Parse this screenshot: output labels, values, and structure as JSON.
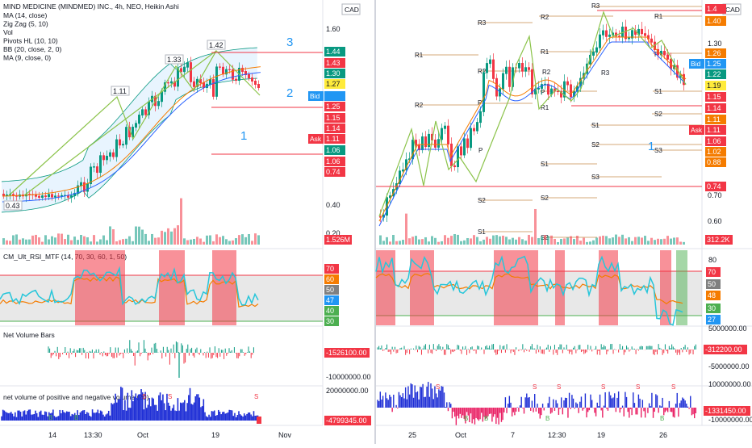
{
  "left": {
    "title": "MIND MEDICINE (MINDMED) INC., 4h, NEO, Heikin Ashi",
    "currency": "CAD",
    "legend": [
      "MA (14, close)",
      "Zig Zag (5, 10)",
      "Vol",
      "Pivots HL (10, 10)",
      "BB (20, close, 2, 0)",
      "MA (9, close, 0)"
    ],
    "x_ticks": [
      "14",
      "13:30",
      "Oct",
      "19",
      "Nov"
    ],
    "price_ticks": [
      "1.60",
      "0.40",
      "0.20"
    ],
    "price_badges": [
      {
        "text": "1.44",
        "color": "#089981"
      },
      {
        "text": "1.43",
        "color": "#f23645"
      },
      {
        "text": "1.30",
        "color": "#089981"
      },
      {
        "text": "1.27",
        "color": "#ffeb3b"
      },
      {
        "text": "1.25",
        "color": "#f23645"
      },
      {
        "text": "1.15",
        "color": "#f23645"
      },
      {
        "text": "1.14",
        "color": "#f23645"
      },
      {
        "text": "1.11",
        "color": "#f23645"
      },
      {
        "text": "1.06",
        "color": "#089981"
      },
      {
        "text": "1.06",
        "color": "#f23645"
      },
      {
        "text": "0.74",
        "color": "#f23645"
      }
    ],
    "bid_label": "Bid",
    "ask_label": "Ask",
    "volume_badge": "1.526M",
    "zigzag_labels": [
      "1.11",
      "1.33",
      "1.42",
      "0.43"
    ],
    "wave_labels": [
      "3",
      "2",
      "1"
    ],
    "rsi_title": "CM_Ult_RSI_MTF (14, 70, 30, 60, 1, 50)",
    "rsi_ticks": [
      "70",
      "60",
      "50",
      "40",
      "30"
    ],
    "rsi_badges": [
      {
        "text": "70",
        "color": "#f23645"
      },
      {
        "text": "60",
        "color": "#f57c00"
      },
      {
        "text": "50",
        "color": "#808080"
      },
      {
        "text": "47",
        "color": "#2196f3"
      },
      {
        "text": "40",
        "color": "#4caf50"
      },
      {
        "text": "30",
        "color": "#4caf50"
      }
    ],
    "nvb_title": "Net Volume Bars",
    "nvb_badge": "-1526100.00",
    "nvb_tick": "-10000000.00",
    "npv_title": "net volume of positive and negative volume (20)",
    "npv_tick": "20000000.00",
    "npv_badge": "-4799345.00"
  },
  "right": {
    "currency": "CAD",
    "x_ticks": [
      "25",
      "Oct",
      "7",
      "12:30",
      "19",
      "26"
    ],
    "price_ticks": [
      "1.30",
      "0.70",
      "0.60"
    ],
    "price_badges": [
      {
        "text": "1.4",
        "color": "#f23645"
      },
      {
        "text": "1.40",
        "color": "#f57c00"
      },
      {
        "text": "1.26",
        "color": "#f57c00"
      },
      {
        "text": "1.25",
        "color": "#2196f3"
      },
      {
        "text": "1.22",
        "color": "#089981"
      },
      {
        "text": "1.19",
        "color": "#ffeb3b"
      },
      {
        "text": "1.15",
        "color": "#f23645"
      },
      {
        "text": "1.14",
        "color": "#f23645"
      },
      {
        "text": "1.11",
        "color": "#f57c00"
      },
      {
        "text": "1.11",
        "color": "#f23645"
      },
      {
        "text": "1.06",
        "color": "#f23645"
      },
      {
        "text": "1.02",
        "color": "#f57c00"
      },
      {
        "text": "0.88",
        "color": "#f57c00"
      },
      {
        "text": "0.74",
        "color": "#f23645"
      }
    ],
    "bid_label": "Bid",
    "ask_label": "Ask",
    "volume_badge": "312.2K",
    "pivot_labels": [
      "R3",
      "R2",
      "R3",
      "R1",
      "R2",
      "R1",
      "P",
      "R1",
      "R2",
      "P",
      "P",
      "S1",
      "S1",
      "S2",
      "S1",
      "S2",
      "S2",
      "S3",
      "S3",
      "S2",
      "S1",
      "S2",
      "R2",
      "R1",
      "P",
      "R3"
    ],
    "wave_label": "1",
    "rsi_ticks": [
      "80",
      "70",
      "50",
      "48",
      "30"
    ],
    "rsi_badges": [
      {
        "text": "70",
        "color": "#f23645"
      },
      {
        "text": "50",
        "color": "#808080"
      },
      {
        "text": "48",
        "color": "#f57c00"
      },
      {
        "text": "30",
        "color": "#4caf50"
      },
      {
        "text": "27",
        "color": "#2196f3"
      }
    ],
    "nvb_badge": "-312200.00",
    "nvb_ticks": [
      "5000000.00",
      "-5000000.00"
    ],
    "npv_ticks": [
      "10000000.00",
      "-10000000.00"
    ],
    "npv_badge": "-1331450.00"
  }
}
